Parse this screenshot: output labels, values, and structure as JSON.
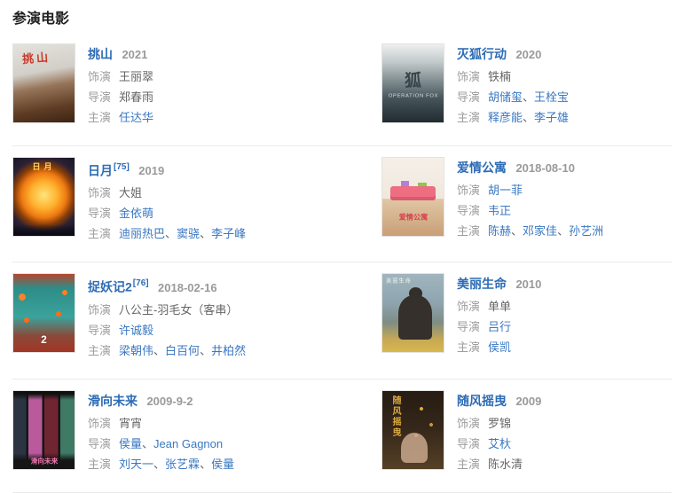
{
  "section": {
    "title": "参演电影"
  },
  "labels": {
    "role": "饰演",
    "director": "导演",
    "starring": "主演",
    "separator": "、"
  },
  "colors": {
    "title_link": "#2d6cb5",
    "name_link": "#3a78c2",
    "label_gray": "#9e9e9e",
    "plain_text": "#666666",
    "divider": "#eaeaea"
  },
  "movies": [
    {
      "title": "挑山",
      "ref": "",
      "year": "2021",
      "role": {
        "text": "王丽翠",
        "link": false
      },
      "directors": [
        {
          "text": "郑春雨",
          "link": false
        }
      ],
      "stars": [
        {
          "text": "任达华",
          "link": true
        }
      ],
      "poster": {
        "text": "挑山",
        "subtext": ""
      }
    },
    {
      "title": "灭狐行动",
      "ref": "",
      "year": "2020",
      "role": {
        "text": "铁楠",
        "link": false
      },
      "directors": [
        {
          "text": "胡储玺",
          "link": true
        },
        {
          "text": "王栓宝",
          "link": true
        }
      ],
      "stars": [
        {
          "text": "释彦能",
          "link": true
        },
        {
          "text": "李子雄",
          "link": true
        }
      ],
      "poster": {
        "text": "狐",
        "subtext": "OPERATION FOX"
      }
    },
    {
      "title": "日月",
      "ref": "[75]",
      "year": "2019",
      "role": {
        "text": "大姐",
        "link": false
      },
      "directors": [
        {
          "text": "金依萌",
          "link": true
        }
      ],
      "stars": [
        {
          "text": "迪丽热巴",
          "link": true
        },
        {
          "text": "窦骁",
          "link": true
        },
        {
          "text": "李子峰",
          "link": true
        }
      ],
      "poster": {
        "text": "日月",
        "subtext": ""
      }
    },
    {
      "title": "爱情公寓",
      "ref": "",
      "year": "2018-08-10",
      "role": {
        "text": "胡一菲",
        "link": true
      },
      "directors": [
        {
          "text": "韦正",
          "link": true
        }
      ],
      "stars": [
        {
          "text": "陈赫",
          "link": true
        },
        {
          "text": "邓家佳",
          "link": true
        },
        {
          "text": "孙艺洲",
          "link": true
        }
      ],
      "poster": {
        "text": "爱情公寓",
        "subtext": ""
      }
    },
    {
      "title": "捉妖记2",
      "ref": "[76]",
      "year": "2018-02-16",
      "role": {
        "text": "八公主-羽毛女（客串）",
        "link": false
      },
      "directors": [
        {
          "text": "许诚毅",
          "link": true
        }
      ],
      "stars": [
        {
          "text": "梁朝伟",
          "link": true
        },
        {
          "text": "白百何",
          "link": true
        },
        {
          "text": "井柏然",
          "link": true
        }
      ],
      "poster": {
        "text": "2",
        "subtext": ""
      }
    },
    {
      "title": "美丽生命",
      "ref": "",
      "year": "2010",
      "role": {
        "text": "单单",
        "link": false
      },
      "directors": [
        {
          "text": "吕行",
          "link": true
        }
      ],
      "stars": [
        {
          "text": "侯凯",
          "link": true
        }
      ],
      "poster": {
        "text": "美丽生命",
        "subtext": ""
      }
    },
    {
      "title": "滑向未来",
      "ref": "",
      "year": "2009-9-2",
      "role": {
        "text": "宵宵",
        "link": false
      },
      "directors": [
        {
          "text": "侯量",
          "link": true
        },
        {
          "text": "Jean Gagnon",
          "link": true
        }
      ],
      "stars": [
        {
          "text": "刘天一",
          "link": true
        },
        {
          "text": "张艺霖",
          "link": true
        },
        {
          "text": "侯量",
          "link": true
        }
      ],
      "poster": {
        "text": "滑向未来",
        "subtext": ""
      }
    },
    {
      "title": "随风摇曳",
      "ref": "",
      "year": "2009",
      "role": {
        "text": "罗锦",
        "link": false
      },
      "directors": [
        {
          "text": "艾杕",
          "link": true
        }
      ],
      "stars": [
        {
          "text": "陈水清",
          "link": false
        }
      ],
      "poster": {
        "text": "随风摇曳",
        "subtext": ""
      }
    }
  ]
}
